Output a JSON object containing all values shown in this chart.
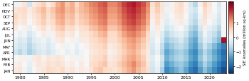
{
  "months": [
    "JAN",
    "FEB",
    "MAR",
    "APR",
    "MAY",
    "JUN",
    "JUL",
    "AUG",
    "SEP",
    "OCT",
    "NOV",
    "DEC"
  ],
  "year_start": 1979,
  "year_end": 2023,
  "clim_vmin": -2.5,
  "clim_vmax": 2.5,
  "colormap": "RdBu_r",
  "xlabel_ticks": [
    1980,
    1985,
    1990,
    1995,
    2000,
    2005,
    2010,
    2015,
    2020
  ],
  "ylabel_label": "SIE Anomalies (million sq-km)",
  "colorbar_ticks": [
    -2,
    -1,
    0,
    1
  ],
  "bg_color": "#f0f0f0"
}
